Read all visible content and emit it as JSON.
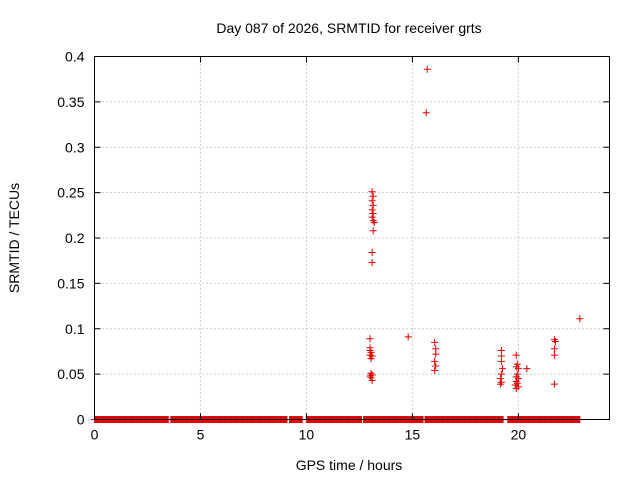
{
  "chart_data": {
    "type": "scatter",
    "title": "Day 087 of 2026, SRMTID for receiver grts",
    "xlabel": "GPS time / hours",
    "ylabel": "SRMTID / TECUs",
    "xlim": [
      0,
      24.3
    ],
    "ylim": [
      0,
      0.4
    ],
    "xticks": [
      0,
      5,
      10,
      15,
      20
    ],
    "yticks": [
      0,
      0.05,
      0.1,
      0.15,
      0.2,
      0.25,
      0.3,
      0.35,
      0.4
    ],
    "ytick_labels": [
      "0",
      "0.05",
      "0.1",
      "0.15",
      "0.2",
      "0.25",
      "0.3",
      "0.35",
      "0.4"
    ],
    "grid": true,
    "marker": "+",
    "color": "#e00000",
    "baseline": {
      "y": 0,
      "ranges": [
        [
          0,
          3.5
        ],
        [
          3.6,
          9.1
        ],
        [
          9.2,
          9.8
        ],
        [
          10.0,
          12.6
        ],
        [
          12.7,
          15.5
        ],
        [
          15.6,
          19.3
        ],
        [
          19.5,
          22.9
        ]
      ]
    },
    "points": [
      [
        13.0,
        0.089
      ],
      [
        13.0,
        0.079
      ],
      [
        13.0,
        0.076
      ],
      [
        13.05,
        0.074
      ],
      [
        13.0,
        0.071
      ],
      [
        13.1,
        0.07
      ],
      [
        13.05,
        0.067
      ],
      [
        13.05,
        0.051
      ],
      [
        13.1,
        0.049
      ],
      [
        13.0,
        0.048
      ],
      [
        13.05,
        0.046
      ],
      [
        13.1,
        0.043
      ],
      [
        13.1,
        0.251
      ],
      [
        13.15,
        0.246
      ],
      [
        13.1,
        0.241
      ],
      [
        13.15,
        0.236
      ],
      [
        13.1,
        0.231
      ],
      [
        13.15,
        0.227
      ],
      [
        13.1,
        0.223
      ],
      [
        13.15,
        0.219
      ],
      [
        13.2,
        0.217
      ],
      [
        13.15,
        0.208
      ],
      [
        13.1,
        0.184
      ],
      [
        13.1,
        0.173
      ],
      [
        14.8,
        0.091
      ],
      [
        15.7,
        0.386
      ],
      [
        15.65,
        0.338
      ],
      [
        16.05,
        0.085
      ],
      [
        16.1,
        0.078
      ],
      [
        16.1,
        0.072
      ],
      [
        16.05,
        0.064
      ],
      [
        16.1,
        0.059
      ],
      [
        16.05,
        0.054
      ],
      [
        19.2,
        0.076
      ],
      [
        19.2,
        0.07
      ],
      [
        19.2,
        0.064
      ],
      [
        19.25,
        0.056
      ],
      [
        19.2,
        0.05
      ],
      [
        19.15,
        0.045
      ],
      [
        19.2,
        0.041
      ],
      [
        19.15,
        0.039
      ],
      [
        19.9,
        0.071
      ],
      [
        19.95,
        0.061
      ],
      [
        19.9,
        0.058
      ],
      [
        20.0,
        0.056
      ],
      [
        19.95,
        0.05
      ],
      [
        19.9,
        0.047
      ],
      [
        20.0,
        0.045
      ],
      [
        19.9,
        0.042
      ],
      [
        19.95,
        0.04
      ],
      [
        19.85,
        0.038
      ],
      [
        20.0,
        0.036
      ],
      [
        19.9,
        0.034
      ],
      [
        20.4,
        0.056
      ],
      [
        21.7,
        0.088
      ],
      [
        21.75,
        0.086
      ],
      [
        21.7,
        0.078
      ],
      [
        21.7,
        0.071
      ],
      [
        21.7,
        0.039
      ],
      [
        22.9,
        0.111
      ]
    ]
  }
}
